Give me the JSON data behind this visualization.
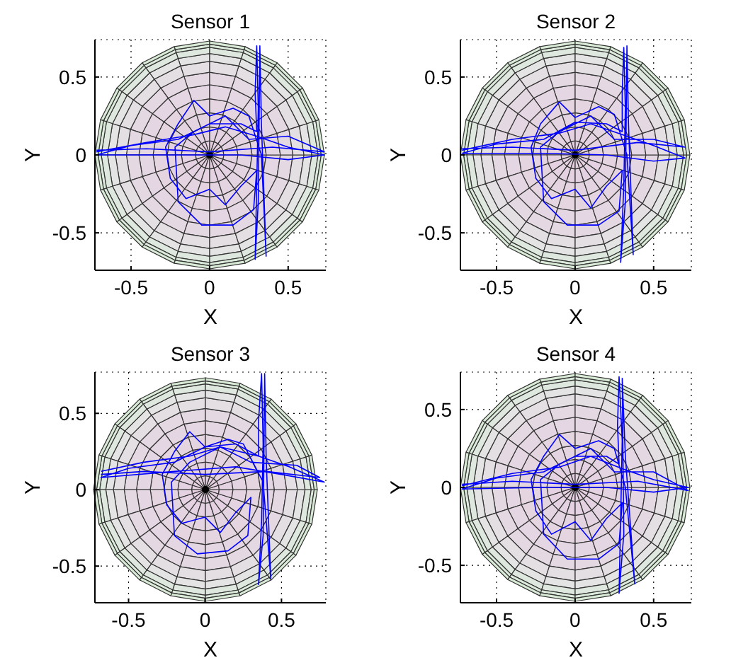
{
  "chart_data": [
    {
      "type": "line",
      "title": "Sensor 1",
      "xlabel": "X",
      "ylabel": "Y",
      "xlim": [
        -0.73,
        0.74
      ],
      "ylim": [
        -0.74,
        0.74
      ],
      "xticks": [
        -0.5,
        0,
        0.5
      ],
      "yticks": [
        -0.5,
        0,
        0.5
      ],
      "grid": true,
      "marker": "none",
      "series": [
        {
          "color": "#0000ff",
          "x": [
            -0.72,
            -0.4,
            -0.1,
            0.1,
            0.3,
            0.5,
            0.73,
            0.5,
            0.2,
            -0.2,
            -0.72,
            -0.5,
            -0.2,
            0,
            0.2,
            0.3,
            0.29,
            0.3,
            0.31,
            0.3,
            0.29,
            0.31,
            0.32,
            0.33,
            0.36,
            0.33,
            0.25,
            0.15,
            0,
            -0.1,
            -0.2,
            -0.28,
            -0.25,
            -0.15,
            0,
            0.1,
            0.2,
            0.3,
            0.28,
            0.15,
            -0.05,
            -0.2,
            -0.22,
            -0.1,
            0.1,
            0.25,
            0.5,
            0.73,
            0.4,
            0,
            -0.4,
            -0.72
          ],
          "values": [
            0.02,
            0.08,
            0.13,
            0.18,
            0.12,
            0.05,
            0,
            -0.03,
            0,
            0,
            0,
            0.06,
            0.1,
            0.2,
            0.2,
            0.15,
            0.4,
            0.7,
            0.3,
            -0.2,
            -0.67,
            -0.3,
            0.7,
            0.2,
            -0.65,
            0,
            0.25,
            0.3,
            0.25,
            0.35,
            0.2,
            0.05,
            -0.15,
            -0.28,
            -0.22,
            -0.32,
            -0.2,
            -0.1,
            -0.35,
            -0.45,
            -0.45,
            -0.3,
            0.05,
            0.15,
            0.25,
            0.1,
            0.12,
            0.02,
            0.05,
            0.02,
            0.04,
            0.03
          ]
        }
      ]
    },
    {
      "type": "line",
      "title": "Sensor 2",
      "xlabel": "X",
      "ylabel": "Y",
      "xlim": [
        -0.73,
        0.74
      ],
      "ylim": [
        -0.74,
        0.74
      ],
      "xticks": [
        -0.5,
        0,
        0.5
      ],
      "yticks": [
        -0.5,
        0,
        0.5
      ],
      "grid": true,
      "marker": "none",
      "series": [
        {
          "color": "#0000ff",
          "x": [
            -0.72,
            -0.4,
            -0.1,
            0.1,
            0.3,
            0.5,
            0.7,
            0.5,
            0.2,
            -0.2,
            -0.72,
            -0.5,
            -0.2,
            0,
            0.2,
            0.3,
            0.3,
            0.31,
            0.32,
            0.31,
            0.29,
            0.32,
            0.33,
            0.34,
            0.37,
            0.33,
            0.25,
            0.15,
            0,
            -0.1,
            -0.22,
            -0.28,
            -0.25,
            -0.15,
            0,
            0.1,
            0.2,
            0.3,
            0.28,
            0.15,
            -0.05,
            -0.2,
            -0.22,
            -0.1,
            0.1,
            0.25,
            0.5,
            0.7,
            0.4,
            0,
            -0.4,
            -0.72
          ],
          "values": [
            0.03,
            0.1,
            0.14,
            0.2,
            0.13,
            0.06,
            -0.02,
            -0.04,
            0,
            0.01,
            0.01,
            0.07,
            0.1,
            0.21,
            0.2,
            0.15,
            0.4,
            0.69,
            0.3,
            -0.2,
            -0.69,
            -0.3,
            0.7,
            0.2,
            -0.64,
            0,
            0.26,
            0.31,
            0.24,
            0.34,
            0.2,
            0.05,
            -0.15,
            -0.28,
            -0.22,
            -0.34,
            -0.2,
            -0.1,
            -0.36,
            -0.45,
            -0.45,
            -0.3,
            0.05,
            0.15,
            0.25,
            0.1,
            0.1,
            0.05,
            0.08,
            0.03,
            0.05,
            0.04
          ]
        }
      ]
    },
    {
      "type": "line",
      "title": "Sensor 3",
      "xlabel": "X",
      "ylabel": "Y",
      "xlim": [
        -0.72,
        0.79
      ],
      "ylim": [
        -0.74,
        0.77
      ],
      "xticks": [
        -0.5,
        0,
        0.5
      ],
      "yticks": [
        -0.5,
        0,
        0.5
      ],
      "grid": true,
      "marker": "none",
      "series": [
        {
          "color": "#0000ff",
          "x": [
            -0.68,
            -0.4,
            -0.1,
            0.1,
            0.35,
            0.55,
            0.78,
            0.5,
            0.2,
            -0.2,
            -0.68,
            -0.5,
            -0.2,
            0,
            0.2,
            0.35,
            0.35,
            0.37,
            0.38,
            0.37,
            0.35,
            0.38,
            0.39,
            0.4,
            0.43,
            0.38,
            0.25,
            0.15,
            0,
            -0.1,
            -0.2,
            -0.28,
            -0.25,
            -0.15,
            0,
            0.1,
            0.2,
            0.3,
            0.28,
            0.15,
            -0.05,
            -0.2,
            -0.22,
            -0.1,
            0.1,
            0.3,
            0.6,
            0.75,
            0.4,
            0,
            -0.4,
            -0.68
          ],
          "values": [
            0.12,
            0.18,
            0.22,
            0.28,
            0.22,
            0.15,
            0.05,
            0.1,
            0.15,
            0.12,
            0.08,
            0.14,
            0.18,
            0.28,
            0.3,
            0.22,
            0.45,
            0.76,
            0.3,
            -0.2,
            -0.62,
            -0.3,
            0.76,
            0.2,
            -0.58,
            0.05,
            0.3,
            0.33,
            0.28,
            0.38,
            0.25,
            0.1,
            -0.1,
            -0.22,
            -0.18,
            -0.28,
            -0.15,
            -0.05,
            -0.3,
            -0.4,
            -0.42,
            -0.3,
            0.05,
            0.18,
            0.28,
            0.18,
            0.16,
            0.08,
            0.12,
            0.1,
            0.12,
            0.1
          ]
        }
      ]
    },
    {
      "type": "line",
      "title": "Sensor 4",
      "xlabel": "X",
      "ylabel": "Y",
      "xlim": [
        -0.73,
        0.74
      ],
      "ylim": [
        -0.74,
        0.74
      ],
      "xticks": [
        -0.5,
        0,
        0.5
      ],
      "yticks": [
        -0.5,
        0,
        0.5
      ],
      "grid": true,
      "marker": "none",
      "series": [
        {
          "color": "#0000ff",
          "x": [
            -0.72,
            -0.4,
            -0.1,
            0.1,
            0.3,
            0.5,
            0.72,
            0.5,
            0.2,
            -0.2,
            -0.72,
            -0.5,
            -0.2,
            0,
            0.2,
            0.28,
            0.27,
            0.28,
            0.3,
            0.29,
            0.28,
            0.31,
            0.3,
            0.32,
            0.38,
            0.32,
            0.25,
            0.15,
            0,
            -0.1,
            -0.2,
            -0.28,
            -0.25,
            -0.15,
            0,
            0.1,
            0.2,
            0.3,
            0.28,
            0.15,
            -0.05,
            -0.2,
            -0.22,
            -0.1,
            0.1,
            0.25,
            0.5,
            0.72,
            0.4,
            0,
            -0.4,
            -0.72
          ],
          "values": [
            0.01,
            0.09,
            0.13,
            0.2,
            0.12,
            0.05,
            0,
            -0.03,
            0,
            0,
            -0.01,
            0.06,
            0.1,
            0.2,
            0.2,
            0.15,
            0.4,
            0.71,
            0.3,
            -0.2,
            -0.68,
            -0.3,
            0.7,
            0.2,
            -0.62,
            0,
            0.25,
            0.3,
            0.25,
            0.34,
            0.2,
            0.05,
            -0.15,
            -0.3,
            -0.22,
            -0.34,
            -0.2,
            -0.1,
            -0.36,
            -0.46,
            -0.46,
            -0.3,
            0.05,
            0.15,
            0.25,
            0.1,
            0.1,
            -0.02,
            0.04,
            0.02,
            0.04,
            0.02
          ]
        }
      ]
    }
  ]
}
